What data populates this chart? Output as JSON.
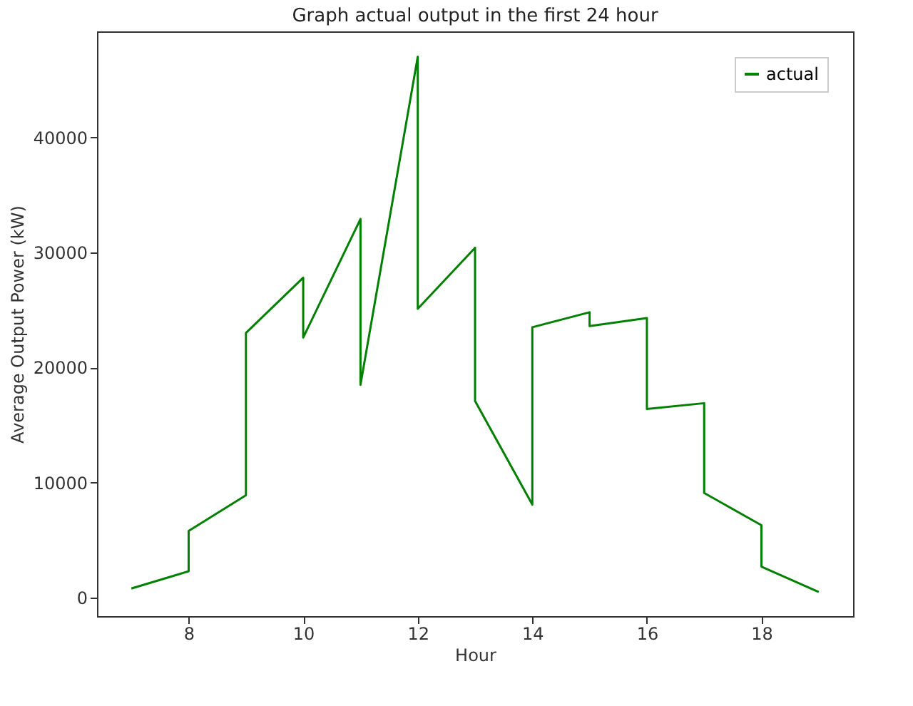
{
  "chart_data": {
    "type": "line",
    "title": "Graph actual output in the first 24 hour",
    "xlabel": "Hour",
    "ylabel": "Average Output Power (kW)",
    "x": [
      7,
      8,
      8,
      9,
      9,
      10,
      10,
      11,
      11,
      12,
      12,
      13,
      13,
      14,
      14,
      15,
      15,
      16,
      16,
      17,
      17,
      18,
      18,
      19
    ],
    "series": [
      {
        "name": "actual",
        "color": "#008000",
        "values": [
          800,
          2300,
          5800,
          8900,
          23000,
          27800,
          22600,
          32900,
          18500,
          47000,
          25100,
          30400,
          17100,
          8100,
          23500,
          24800,
          23600,
          24300,
          16400,
          16900,
          9100,
          6300,
          2700,
          500
        ]
      }
    ],
    "xlim": [
      6.4,
      19.6
    ],
    "xticks": [
      8,
      10,
      12,
      14,
      16,
      18
    ],
    "ylim": [
      -1600,
      49200
    ],
    "yticks": [
      0,
      10000,
      20000,
      30000,
      40000
    ],
    "grid": false,
    "legend": "top right",
    "marker": "none",
    "line_style": "solid"
  }
}
